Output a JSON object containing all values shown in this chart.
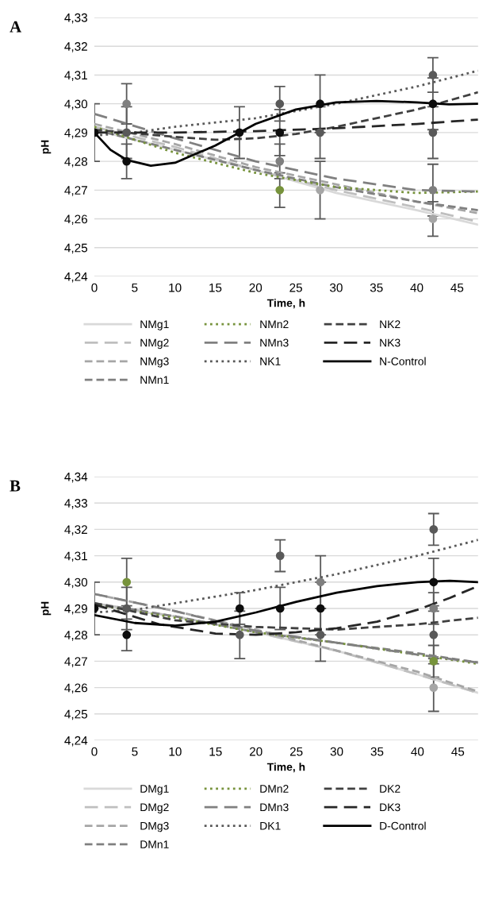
{
  "chart_data": [
    {
      "type": "line",
      "title": "A",
      "xlabel": "Time, h",
      "ylabel": "pH",
      "xlim": [
        0,
        47.6
      ],
      "ylim": [
        4.24,
        4.33
      ],
      "xticks": [
        0,
        5,
        10,
        15,
        20,
        25,
        30,
        35,
        40,
        45
      ],
      "yticks": [
        {
          "value": 4.24,
          "label": "4,24"
        },
        {
          "value": 4.25,
          "label": "4,25"
        },
        {
          "value": 4.26,
          "label": "4,26"
        },
        {
          "value": 4.27,
          "label": "4,27"
        },
        {
          "value": 4.28,
          "label": "4,28"
        },
        {
          "value": 4.29,
          "label": "4,29"
        },
        {
          "value": 4.3,
          "label": "4,30"
        },
        {
          "value": 4.31,
          "label": "4,31"
        },
        {
          "value": 4.32,
          "label": "4,32"
        },
        {
          "value": 4.33,
          "label": "4,33"
        }
      ],
      "grid": "y",
      "legend": "bottom",
      "marker": "none",
      "series": [
        {
          "name": "NMg1",
          "color": "#d9d9d9",
          "line_style": "solid",
          "x": [
            0,
            10,
            20,
            30,
            40,
            47.6
          ],
          "values": [
            4.291,
            4.284,
            4.277,
            4.269,
            4.263,
            4.258
          ]
        },
        {
          "name": "NMg2",
          "color": "#bfbfbf",
          "line_style": "longdash",
          "x": [
            0,
            10,
            20,
            30,
            40,
            47.6
          ],
          "values": [
            4.292,
            4.285,
            4.277,
            4.27,
            4.264,
            4.259
          ]
        },
        {
          "name": "NMg3",
          "color": "#a6a6a6",
          "line_style": "dashed",
          "x": [
            0,
            10,
            20,
            30,
            40,
            47.6
          ],
          "values": [
            4.293,
            4.286,
            4.278,
            4.272,
            4.266,
            4.262
          ]
        },
        {
          "name": "NMn1",
          "color": "#808080",
          "line_style": "dashed",
          "x": [
            0,
            10,
            20,
            30,
            40,
            47.6
          ],
          "values": [
            4.291,
            4.284,
            4.277,
            4.271,
            4.266,
            4.263
          ]
        },
        {
          "name": "NMn2",
          "color": "#77933c",
          "line_style": "dotted",
          "x": [
            0,
            10,
            20,
            30,
            40,
            47.6
          ],
          "values": [
            4.292,
            4.283,
            4.276,
            4.271,
            4.269,
            4.2695
          ]
        },
        {
          "name": "NMn3",
          "color": "#808080",
          "line_style": "longdash",
          "x": [
            0,
            10,
            20,
            30,
            40,
            47.6
          ],
          "values": [
            4.2965,
            4.288,
            4.28,
            4.274,
            4.27,
            4.2695
          ]
        },
        {
          "name": "NK1",
          "color": "#595959",
          "line_style": "dotted",
          "x": [
            0,
            5,
            10,
            20,
            30,
            40,
            47.6
          ],
          "values": [
            4.289,
            4.29,
            4.292,
            4.295,
            4.3,
            4.306,
            4.3115
          ]
        },
        {
          "name": "NK2",
          "color": "#404040",
          "line_style": "dashed",
          "x": [
            0,
            10,
            15,
            20,
            25,
            30,
            40,
            47.6
          ],
          "values": [
            4.291,
            4.2885,
            4.2875,
            4.288,
            4.2895,
            4.292,
            4.298,
            4.304
          ]
        },
        {
          "name": "NK3",
          "color": "#262626",
          "line_style": "longdash",
          "x": [
            0,
            10,
            20,
            30,
            40,
            47.6
          ],
          "values": [
            4.29,
            4.29,
            4.2905,
            4.2915,
            4.293,
            4.2945
          ]
        },
        {
          "name": "N-Control",
          "color": "#000000",
          "line_style": "solid",
          "x": [
            0,
            2,
            4,
            7,
            10,
            15,
            20,
            25,
            30,
            35,
            40,
            44,
            47.6
          ],
          "values": [
            4.29,
            4.284,
            4.2805,
            4.2785,
            4.2795,
            4.2855,
            4.293,
            4.298,
            4.3005,
            4.301,
            4.3005,
            4.2998,
            4.3
          ]
        },
        {
          "type": "scatter",
          "marker": "circle",
          "color": "#0d0d0d",
          "x": [
            0,
            4,
            18,
            23,
            28,
            42
          ],
          "values": [
            4.29,
            4.28,
            4.29,
            4.29,
            4.3,
            4.3
          ],
          "errors": [
            0.01,
            0.006,
            0.009,
            0.008,
            0.01,
            0.009
          ]
        },
        {
          "type": "scatter",
          "marker": "circle",
          "color": "#595959",
          "x": [
            4,
            23,
            28,
            42,
            42
          ],
          "values": [
            4.29,
            4.3,
            4.29,
            4.31,
            4.29
          ],
          "errors": [
            0.009,
            0.006,
            0.009,
            0.006,
            0.009
          ]
        },
        {
          "type": "scatter",
          "marker": "circle",
          "color": "#7f7f7f",
          "x": [
            4,
            23,
            42
          ],
          "values": [
            4.3,
            4.28,
            4.27
          ],
          "errors": [
            0.007,
            0.006,
            0.009
          ]
        },
        {
          "type": "scatter",
          "marker": "circle",
          "color": "#a6a6a6",
          "x": [
            28,
            42
          ],
          "values": [
            4.27,
            4.26
          ],
          "errors": [
            0.01,
            0.006
          ]
        },
        {
          "type": "scatter",
          "marker": "circle",
          "color": "#77933c",
          "x": [
            23
          ],
          "values": [
            4.27
          ],
          "errors": [
            0.006
          ]
        }
      ]
    },
    {
      "type": "line",
      "title": "B",
      "xlabel": "Time, h",
      "ylabel": "pH",
      "xlim": [
        0,
        47.5
      ],
      "ylim": [
        4.24,
        4.34
      ],
      "xticks": [
        0,
        5,
        10,
        15,
        20,
        25,
        30,
        35,
        40,
        45
      ],
      "yticks": [
        {
          "value": 4.24,
          "label": "4,24"
        },
        {
          "value": 4.25,
          "label": "4,25"
        },
        {
          "value": 4.26,
          "label": "4,26"
        },
        {
          "value": 4.27,
          "label": "4,27"
        },
        {
          "value": 4.28,
          "label": "4,28"
        },
        {
          "value": 4.29,
          "label": "4,29"
        },
        {
          "value": 4.3,
          "label": "4,30"
        },
        {
          "value": 4.31,
          "label": "4,31"
        },
        {
          "value": 4.32,
          "label": "4,32"
        },
        {
          "value": 4.33,
          "label": "4,33"
        },
        {
          "value": 4.34,
          "label": "4,34"
        }
      ],
      "grid": "y",
      "legend": "bottom",
      "marker": "none",
      "series": [
        {
          "name": "DMg1",
          "color": "#d9d9d9",
          "line_style": "solid",
          "x": [
            0,
            10,
            20,
            30,
            40,
            47.5
          ],
          "values": [
            4.291,
            4.287,
            4.281,
            4.274,
            4.265,
            4.258
          ]
        },
        {
          "name": "DMg2",
          "color": "#bfbfbf",
          "line_style": "longdash",
          "x": [
            0,
            10,
            20,
            30,
            40,
            47.5
          ],
          "values": [
            4.292,
            4.287,
            4.281,
            4.274,
            4.265,
            4.258
          ]
        },
        {
          "name": "DMg3",
          "color": "#a6a6a6",
          "line_style": "dashed",
          "x": [
            0,
            10,
            20,
            30,
            40,
            47.5
          ],
          "values": [
            4.2955,
            4.289,
            4.282,
            4.274,
            4.266,
            4.2585
          ]
        },
        {
          "name": "DMn1",
          "color": "#808080",
          "line_style": "dashed",
          "x": [
            0,
            10,
            20,
            30,
            40,
            47.5
          ],
          "values": [
            4.292,
            4.287,
            4.281,
            4.277,
            4.273,
            4.2695
          ]
        },
        {
          "name": "DMn2",
          "color": "#77933c",
          "line_style": "dotted",
          "x": [
            0,
            10,
            20,
            30,
            40,
            47.5
          ],
          "values": [
            4.2915,
            4.2865,
            4.281,
            4.277,
            4.2725,
            4.269
          ]
        },
        {
          "name": "DMn3",
          "color": "#808080",
          "line_style": "longdash",
          "x": [
            0,
            10,
            20,
            30,
            40,
            47.5
          ],
          "values": [
            4.2955,
            4.289,
            4.2815,
            4.277,
            4.2725,
            4.2695
          ]
        },
        {
          "name": "DK1",
          "color": "#595959",
          "line_style": "dotted",
          "x": [
            0,
            5,
            10,
            20,
            30,
            40,
            47.5
          ],
          "values": [
            4.2885,
            4.2895,
            4.292,
            4.297,
            4.303,
            4.31,
            4.316
          ]
        },
        {
          "name": "DK2",
          "color": "#404040",
          "line_style": "dashed",
          "x": [
            0,
            10,
            20,
            30,
            40,
            47.5
          ],
          "values": [
            4.292,
            4.2855,
            4.283,
            4.282,
            4.284,
            4.2865
          ]
        },
        {
          "name": "DK3",
          "color": "#262626",
          "line_style": "longdash",
          "x": [
            0,
            8,
            15,
            20,
            25,
            30,
            35,
            40,
            44,
            47.5
          ],
          "values": [
            4.2915,
            4.284,
            4.2805,
            4.28,
            4.281,
            4.2825,
            4.285,
            4.2895,
            4.294,
            4.2985
          ]
        },
        {
          "name": "D-Control",
          "color": "#000000",
          "line_style": "solid",
          "x": [
            0,
            5,
            10,
            15,
            20,
            25,
            30,
            35,
            40,
            44,
            47.5
          ],
          "values": [
            4.2875,
            4.2845,
            4.2835,
            4.285,
            4.2885,
            4.2925,
            4.296,
            4.2985,
            4.3,
            4.3005,
            4.3
          ]
        },
        {
          "type": "scatter",
          "marker": "circle",
          "color": "#0d0d0d",
          "x": [
            0,
            4,
            18,
            23,
            28,
            42
          ],
          "values": [
            4.29,
            4.28,
            4.29,
            4.29,
            4.29,
            4.3
          ],
          "errors": [
            0.01,
            0.006,
            0.006,
            0.008,
            0.01,
            0.009
          ]
        },
        {
          "type": "scatter",
          "marker": "circle",
          "color": "#595959",
          "x": [
            4,
            18,
            23,
            28,
            42,
            42
          ],
          "values": [
            4.29,
            4.28,
            4.31,
            4.28,
            4.32,
            4.28
          ],
          "errors": [
            0.008,
            0.009,
            0.006,
            0.01,
            0.006,
            0.009
          ]
        },
        {
          "type": "scatter",
          "marker": "circle",
          "color": "#7f7f7f",
          "x": [
            28,
            42
          ],
          "values": [
            4.3,
            4.29
          ],
          "errors": [
            0.01,
            0.006
          ]
        },
        {
          "type": "scatter",
          "marker": "circle",
          "color": "#77933c",
          "x": [
            4,
            42
          ],
          "values": [
            4.3,
            4.27
          ],
          "errors": [
            0.009,
            0.006
          ]
        },
        {
          "type": "scatter",
          "marker": "circle",
          "color": "#a6a6a6",
          "x": [
            42
          ],
          "values": [
            4.26
          ],
          "errors": [
            0.009
          ]
        }
      ]
    }
  ]
}
